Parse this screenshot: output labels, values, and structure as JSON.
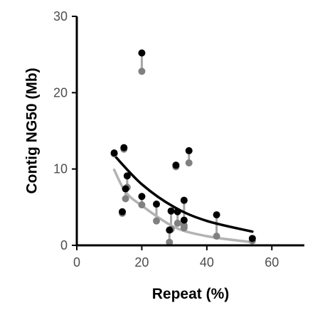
{
  "chart_data": {
    "type": "scatter",
    "title": "",
    "xlabel": "Repeat (%)",
    "ylabel": "Contig NG50 (Mb)",
    "xlim": [
      0,
      70
    ],
    "ylim": [
      0,
      30
    ],
    "xticks": [
      0,
      20,
      40,
      60
    ],
    "yticks": [
      0,
      10,
      20,
      30
    ],
    "x_tick_labels": [
      "0",
      "20",
      "40",
      "60"
    ],
    "y_tick_labels": [
      "0",
      "10",
      "20",
      "30"
    ],
    "grid": false,
    "legend": "none",
    "colors": {
      "primary": "#000000",
      "secondary": "#808080",
      "secondary_fit": "#b3b3b3",
      "connector": "#a6a6a6",
      "axis": "#000000",
      "tick_text": "#4d4d4d"
    },
    "series": [
      {
        "points": [
          {
            "x": 11.5,
            "y": 12.1
          },
          {
            "x": 14.0,
            "y": 4.4
          },
          {
            "x": 14.5,
            "y": 12.8
          },
          {
            "x": 15.0,
            "y": 7.4
          },
          {
            "x": 15.5,
            "y": 9.1
          },
          {
            "x": 20.0,
            "y": 25.2
          },
          {
            "x": 20.0,
            "y": 6.4
          },
          {
            "x": 24.5,
            "y": 5.4
          },
          {
            "x": 28.5,
            "y": 2.0
          },
          {
            "x": 29.0,
            "y": 4.5
          },
          {
            "x": 30.5,
            "y": 10.5
          },
          {
            "x": 31.0,
            "y": 4.4
          },
          {
            "x": 33.0,
            "y": 3.3
          },
          {
            "x": 33.0,
            "y": 5.9
          },
          {
            "x": 34.5,
            "y": 12.4
          },
          {
            "x": 43.0,
            "y": 4.0
          },
          {
            "x": 54.0,
            "y": 0.9
          }
        ],
        "trend": [
          {
            "x": 11.5,
            "y": 11.8
          },
          {
            "x": 20.0,
            "y": 8.0
          },
          {
            "x": 30.0,
            "y": 5.0
          },
          {
            "x": 40.0,
            "y": 3.2
          },
          {
            "x": 54.0,
            "y": 1.8
          }
        ]
      },
      {
        "points": [
          {
            "x": 11.5,
            "y": 12.0
          },
          {
            "x": 14.0,
            "y": 4.2
          },
          {
            "x": 14.5,
            "y": 12.6
          },
          {
            "x": 15.0,
            "y": 6.1
          },
          {
            "x": 15.5,
            "y": 7.6
          },
          {
            "x": 20.0,
            "y": 22.8
          },
          {
            "x": 20.0,
            "y": 5.3
          },
          {
            "x": 24.5,
            "y": 3.2
          },
          {
            "x": 28.5,
            "y": 0.4
          },
          {
            "x": 29.0,
            "y": 2.1
          },
          {
            "x": 30.5,
            "y": 10.3
          },
          {
            "x": 31.0,
            "y": 2.9
          },
          {
            "x": 33.0,
            "y": 2.3
          },
          {
            "x": 33.0,
            "y": 2.6
          },
          {
            "x": 34.5,
            "y": 10.8
          },
          {
            "x": 43.0,
            "y": 1.2
          },
          {
            "x": 54.0,
            "y": 0.6
          }
        ],
        "trend": [
          {
            "x": 11.5,
            "y": 9.9
          },
          {
            "x": 15.0,
            "y": 7.0
          },
          {
            "x": 20.0,
            "y": 5.2
          },
          {
            "x": 30.0,
            "y": 2.4
          },
          {
            "x": 40.0,
            "y": 1.2
          },
          {
            "x": 54.0,
            "y": 0.4
          }
        ]
      }
    ]
  }
}
